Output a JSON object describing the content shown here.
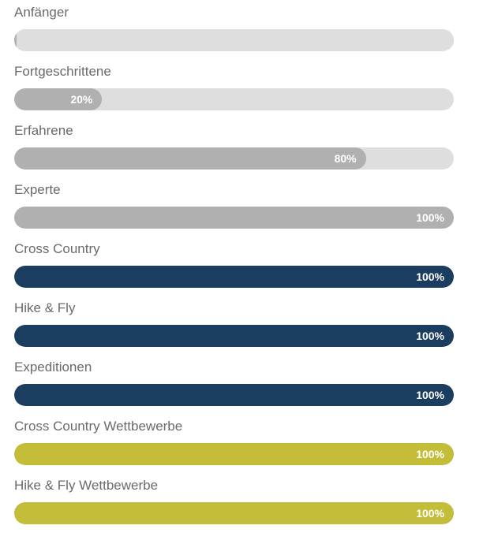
{
  "max": 100,
  "skills": [
    {
      "label": "Anfänger",
      "value": 0.5,
      "color": "#b0b0b0"
    },
    {
      "label": "Fortgeschrittene",
      "value": 20,
      "value_label": "20%",
      "color": "#b0b0b0"
    },
    {
      "label": "Erfahrene",
      "value": 80,
      "value_label": "80%",
      "color": "#b0b0b0"
    },
    {
      "label": "Experte",
      "value": 100,
      "value_label": "100%",
      "color": "#b0b0b0"
    },
    {
      "label": "Cross Country",
      "value": 100,
      "value_label": "100%",
      "color": "#1b3d5f"
    },
    {
      "label": "Hike & Fly",
      "value": 100,
      "value_label": "100%",
      "color": "#1b3d5f"
    },
    {
      "label": "Expeditionen",
      "value": 100,
      "value_label": "100%",
      "color": "#1b3d5f"
    },
    {
      "label": "Cross Country Wettbewerbe",
      "value": 100,
      "value_label": "100%",
      "color": "#c3bd3a"
    },
    {
      "label": "Hike & Fly Wettbewerbe",
      "value": 100,
      "value_label": "100%",
      "color": "#c3bd3a"
    }
  ]
}
